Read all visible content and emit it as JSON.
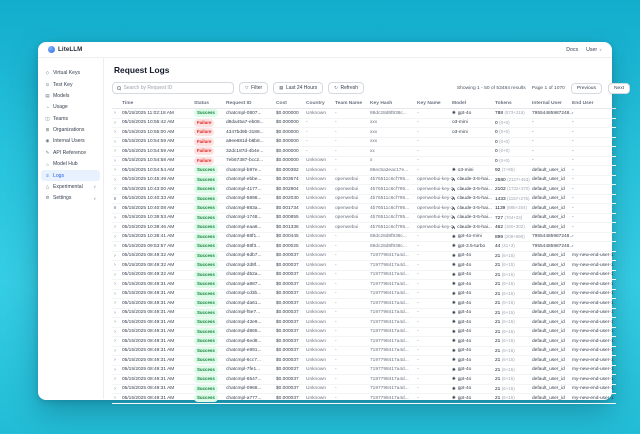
{
  "topbar": {
    "brand": "LiteLLM",
    "links": {
      "docs": "Docs",
      "user": "User"
    }
  },
  "sidebar": {
    "items": [
      {
        "id": "virtual-keys",
        "label": "Virtual Keys",
        "icon": "key-icon",
        "glyph": "◇",
        "active": false,
        "chevron": false
      },
      {
        "id": "test-key",
        "label": "Test Key",
        "icon": "test-key-icon",
        "glyph": "⊙",
        "active": false,
        "chevron": false
      },
      {
        "id": "models",
        "label": "Models",
        "icon": "models-icon",
        "glyph": "▤",
        "active": false,
        "chevron": false
      },
      {
        "id": "usage",
        "label": "Usage",
        "icon": "usage-chart-icon",
        "glyph": "◔",
        "active": false,
        "chevron": false
      },
      {
        "id": "teams",
        "label": "Teams",
        "icon": "teams-icon",
        "glyph": "◫",
        "active": false,
        "chevron": false
      },
      {
        "id": "organizations",
        "label": "Organizations",
        "icon": "organizations-icon",
        "glyph": "⊞",
        "active": false,
        "chevron": false
      },
      {
        "id": "internal-users",
        "label": "Internal Users",
        "icon": "users-icon",
        "glyph": "◉",
        "active": false,
        "chevron": false
      },
      {
        "id": "api-reference",
        "label": "API Reference",
        "icon": "api-reference-icon",
        "glyph": "✎",
        "active": false,
        "chevron": false
      },
      {
        "id": "model-hub",
        "label": "Model Hub",
        "icon": "model-hub-icon",
        "glyph": "⌂",
        "active": false,
        "chevron": false
      },
      {
        "id": "logs",
        "label": "Logs",
        "icon": "logs-icon",
        "glyph": "≡",
        "active": true,
        "chevron": false
      },
      {
        "id": "experimental",
        "label": "Experimental",
        "icon": "experimental-icon",
        "glyph": "△",
        "active": false,
        "chevron": true
      },
      {
        "id": "settings",
        "label": "Settings",
        "icon": "settings-gear-icon",
        "glyph": "⚙",
        "active": false,
        "chevron": true
      }
    ]
  },
  "main": {
    "title": "Request Logs",
    "toolbar": {
      "search_placeholder": "Search by Request ID",
      "filter_label": "Filter",
      "range_label": "Last 24 Hours",
      "refresh_label": "Refresh"
    },
    "pagination": {
      "showing": "Showing 1 - 50 of 53484 results",
      "page": "Page 1 of 1070",
      "previous": "Previous",
      "next": "Next"
    },
    "table": {
      "columns": [
        "Time",
        "Status",
        "Request ID",
        "Cost",
        "Country",
        "Team Name",
        "Key Hash",
        "Key Name",
        "Model",
        "Tokens",
        "Internal User",
        "End User"
      ],
      "rows": [
        {
          "expanded": false,
          "time": "05/15/2025 11:02:18 AM",
          "status": "Success",
          "request_id": "chatcmpl-0807...",
          "cost": "$0.000000",
          "country": "Unknown",
          "team_name": "-",
          "key_hash": "88dc28d8f838c...",
          "key_name": "-",
          "model": "gpt-4o",
          "provider": "openai",
          "tokens": "788",
          "tokens_detail": "(573+215)",
          "internal_user": "79554485987248...",
          "end_user": "-"
        },
        {
          "expanded": false,
          "time": "05/15/2025 10:55:42 AM",
          "status": "Failure",
          "request_id": "d8da45a7-eb08...",
          "cost": "$0.000000",
          "country": "-",
          "team_name": "-",
          "key_hash": "xxx",
          "key_name": "-",
          "model": "o3-mini",
          "provider": "",
          "tokens": "0",
          "tokens_detail": "(0+0)",
          "internal_user": "-",
          "end_user": "-"
        },
        {
          "expanded": false,
          "time": "05/15/2025 10:55:00 AM",
          "status": "Failure",
          "request_id": "4347bd9b-3188...",
          "cost": "$0.000000",
          "country": "-",
          "team_name": "-",
          "key_hash": "xxx",
          "key_name": "-",
          "model": "o3-mini",
          "provider": "",
          "tokens": "0",
          "tokens_detail": "(0+0)",
          "internal_user": "-",
          "end_user": "-"
        },
        {
          "expanded": false,
          "time": "05/15/2025 10:54:59 AM",
          "status": "Failure",
          "request_id": "a9ee681d-b8b8...",
          "cost": "$0.000000",
          "country": "-",
          "team_name": "-",
          "key_hash": "xxx",
          "key_name": "-",
          "model": "",
          "provider": "",
          "tokens": "0",
          "tokens_detail": "(0+0)",
          "internal_user": "-",
          "end_user": "-"
        },
        {
          "expanded": false,
          "time": "05/15/2025 10:54:59 AM",
          "status": "Failure",
          "request_id": "32dc187d-4b4e...",
          "cost": "$0.000000",
          "country": "-",
          "team_name": "-",
          "key_hash": "xx",
          "key_name": "-",
          "model": "",
          "provider": "",
          "tokens": "0",
          "tokens_detail": "(0+0)",
          "internal_user": "-",
          "end_user": "-"
        },
        {
          "expanded": false,
          "time": "05/15/2025 10:54:58 AM",
          "status": "Failure",
          "request_id": "7eb67387-bcc2...",
          "cost": "$0.000000",
          "country": "Unknown",
          "team_name": "-",
          "key_hash": "x",
          "key_name": "-",
          "model": "",
          "provider": "",
          "tokens": "0",
          "tokens_detail": "(0+0)",
          "internal_user": "-",
          "end_user": "-"
        },
        {
          "expanded": false,
          "time": "05/15/2025 10:54:54 AM",
          "status": "Success",
          "request_id": "chatcmpl-b87e...",
          "cost": "$0.000382",
          "country": "Unknown",
          "team_name": "-",
          "key_hash": "86ec5a2eac17e...",
          "key_name": "-",
          "model": "o3-mini",
          "provider": "openai",
          "tokens": "92",
          "tokens_detail": "(7+85)",
          "internal_user": "default_user_id",
          "end_user": "-"
        },
        {
          "expanded": false,
          "time": "05/15/2025 10:45:49 AM",
          "status": "Success",
          "request_id": "chatcmpl-ebbe...",
          "cost": "$0.003674",
          "country": "Unknown",
          "team_name": "openwebui",
          "key_hash": "4b76511c6cf795...",
          "key_name": "openwebui-key-2",
          "model": "claude-3-5-hai...",
          "provider": "anthropic",
          "tokens": "2580",
          "tokens_detail": "(2127+453)",
          "internal_user": "default_user_id",
          "end_user": "-"
        },
        {
          "expanded": false,
          "time": "05/15/2025 10:43:00 AM",
          "status": "Success",
          "request_id": "chatcmpl-4177...",
          "cost": "$0.002904",
          "country": "Unknown",
          "team_name": "openwebui",
          "key_hash": "4b76511c6cf795...",
          "key_name": "openwebui-key-2",
          "model": "claude-3-5-hai...",
          "provider": "anthropic",
          "tokens": "2102",
          "tokens_detail": "(1732+370)",
          "internal_user": "default_user_id",
          "end_user": "-"
        },
        {
          "expanded": true,
          "time": "05/15/2025 10:40:33 AM",
          "status": "Success",
          "request_id": "chatcmpl-5898...",
          "cost": "$0.002030",
          "country": "Unknown",
          "team_name": "openwebui",
          "key_hash": "4b76511c6cf795...",
          "key_name": "openwebui-key-2",
          "model": "claude-3-5-hai...",
          "provider": "anthropic",
          "tokens": "1433",
          "tokens_detail": "(1157+276)",
          "internal_user": "default_user_id",
          "end_user": "-"
        },
        {
          "expanded": true,
          "time": "05/15/2025 10:40:08 AM",
          "status": "Success",
          "request_id": "chatcmpl-883a...",
          "cost": "$0.001734",
          "country": "Unknown",
          "team_name": "openwebui",
          "key_hash": "4b76511c6cf795...",
          "key_name": "openwebui-key-2",
          "model": "claude-3-5-hai...",
          "provider": "anthropic",
          "tokens": "1139",
          "tokens_detail": "(885+254)",
          "internal_user": "default_user_id",
          "end_user": "-"
        },
        {
          "expanded": false,
          "time": "05/15/2025 10:39:53 AM",
          "status": "Success",
          "request_id": "chatcmpl-1748...",
          "cost": "$0.000855",
          "country": "Unknown",
          "team_name": "openwebui",
          "key_hash": "4b76511c6cf795...",
          "key_name": "openwebui-key-2",
          "model": "claude-3-5-hai...",
          "provider": "anthropic",
          "tokens": "727",
          "tokens_detail": "(704+23)",
          "internal_user": "default_user_id",
          "end_user": "-"
        },
        {
          "expanded": false,
          "time": "05/15/2025 10:39:46 AM",
          "status": "Success",
          "request_id": "chatcmpl-eaa6...",
          "cost": "$0.001336",
          "country": "Unknown",
          "team_name": "openwebui",
          "key_hash": "4b76511c6cf795...",
          "key_name": "openwebui-key-2",
          "model": "claude-3-5-hai...",
          "provider": "anthropic",
          "tokens": "462",
          "tokens_detail": "(160+302)",
          "internal_user": "default_user_id",
          "end_user": "-"
        },
        {
          "expanded": false,
          "time": "05/15/2025 10:38:41 AM",
          "status": "Success",
          "request_id": "chatcmpl-88f1...",
          "cost": "$0.000445",
          "country": "Unknown",
          "team_name": "-",
          "key_hash": "88dc28d8f838c...",
          "key_name": "-",
          "model": "gpt-4o-mini",
          "provider": "openai",
          "tokens": "899",
          "tokens_detail": "(209+690)",
          "internal_user": "79554485987248...",
          "end_user": "-"
        },
        {
          "expanded": false,
          "time": "05/15/2025 09:53:57 AM",
          "status": "Success",
          "request_id": "chatcmpl-88f3...",
          "cost": "$0.000025",
          "country": "Unknown",
          "team_name": "-",
          "key_hash": "88dc28d8f838c...",
          "key_name": "-",
          "model": "gpt-3.5-turbo",
          "provider": "openai",
          "tokens": "44",
          "tokens_detail": "(41+3)",
          "internal_user": "79554485987248...",
          "end_user": "-"
        },
        {
          "expanded": false,
          "time": "05/15/2025 08:49:32 AM",
          "status": "Success",
          "request_id": "chatcmpl-6db7...",
          "cost": "$0.000037",
          "country": "Unknown",
          "team_name": "-",
          "key_hash": "7197798417a4d...",
          "key_name": "-",
          "model": "gpt-4o",
          "provider": "openai",
          "tokens": "21",
          "tokens_detail": "(6+15)",
          "internal_user": "default_user_id",
          "end_user": "my-new-end-user-1"
        },
        {
          "expanded": false,
          "time": "05/15/2025 08:49:32 AM",
          "status": "Success",
          "request_id": "chatcmpl-2d8f...",
          "cost": "$0.000037",
          "country": "Unknown",
          "team_name": "-",
          "key_hash": "7197798417a4d...",
          "key_name": "-",
          "model": "gpt-4o",
          "provider": "openai",
          "tokens": "21",
          "tokens_detail": "(6+15)",
          "internal_user": "default_user_id",
          "end_user": "my-new-end-user-1"
        },
        {
          "expanded": false,
          "time": "05/15/2025 08:49:32 AM",
          "status": "Success",
          "request_id": "chatcmpl-d52a...",
          "cost": "$0.000037",
          "country": "Unknown",
          "team_name": "-",
          "key_hash": "7197798417a4d...",
          "key_name": "-",
          "model": "gpt-4o",
          "provider": "openai",
          "tokens": "21",
          "tokens_detail": "(6+15)",
          "internal_user": "default_user_id",
          "end_user": "my-new-end-user-1"
        },
        {
          "expanded": false,
          "time": "05/15/2025 08:49:31 AM",
          "status": "Success",
          "request_id": "chatcmpl-a887...",
          "cost": "$0.000037",
          "country": "Unknown",
          "team_name": "-",
          "key_hash": "7197798417a4d...",
          "key_name": "-",
          "model": "gpt-4o",
          "provider": "openai",
          "tokens": "21",
          "tokens_detail": "(6+15)",
          "internal_user": "default_user_id",
          "end_user": "my-new-end-user-1"
        },
        {
          "expanded": false,
          "time": "05/15/2025 08:49:31 AM",
          "status": "Success",
          "request_id": "chatcmpl-cd3b...",
          "cost": "$0.000037",
          "country": "Unknown",
          "team_name": "-",
          "key_hash": "7197798417a4d...",
          "key_name": "-",
          "model": "gpt-4o",
          "provider": "openai",
          "tokens": "21",
          "tokens_detail": "(6+15)",
          "internal_user": "default_user_id",
          "end_user": "my-new-end-user-1"
        },
        {
          "expanded": false,
          "time": "05/15/2025 08:49:31 AM",
          "status": "Success",
          "request_id": "chatcmpl-da61...",
          "cost": "$0.000037",
          "country": "Unknown",
          "team_name": "-",
          "key_hash": "7197798417a4d...",
          "key_name": "-",
          "model": "gpt-4o",
          "provider": "openai",
          "tokens": "21",
          "tokens_detail": "(6+15)",
          "internal_user": "default_user_id",
          "end_user": "my-new-end-user-1"
        },
        {
          "expanded": false,
          "time": "05/15/2025 08:49:31 AM",
          "status": "Success",
          "request_id": "chatcmpl-f5e7...",
          "cost": "$0.000037",
          "country": "Unknown",
          "team_name": "-",
          "key_hash": "7197798417a4d...",
          "key_name": "-",
          "model": "gpt-4o",
          "provider": "openai",
          "tokens": "21",
          "tokens_detail": "(6+15)",
          "internal_user": "default_user_id",
          "end_user": "my-new-end-user-1"
        },
        {
          "expanded": false,
          "time": "05/15/2025 08:49:31 AM",
          "status": "Success",
          "request_id": "chatcmpl-43e9...",
          "cost": "$0.000037",
          "country": "Unknown",
          "team_name": "-",
          "key_hash": "7197798417a4d...",
          "key_name": "-",
          "model": "gpt-4o",
          "provider": "openai",
          "tokens": "21",
          "tokens_detail": "(6+15)",
          "internal_user": "default_user_id",
          "end_user": "my-new-end-user-1"
        },
        {
          "expanded": false,
          "time": "05/15/2025 08:49:31 AM",
          "status": "Success",
          "request_id": "chatcmpl-d865...",
          "cost": "$0.000037",
          "country": "Unknown",
          "team_name": "-",
          "key_hash": "7197798417a4d...",
          "key_name": "-",
          "model": "gpt-4o",
          "provider": "openai",
          "tokens": "21",
          "tokens_detail": "(6+15)",
          "internal_user": "default_user_id",
          "end_user": "my-new-end-user-1"
        },
        {
          "expanded": false,
          "time": "05/15/2025 08:49:31 AM",
          "status": "Success",
          "request_id": "chatcmpl-6ed8...",
          "cost": "$0.000037",
          "country": "Unknown",
          "team_name": "-",
          "key_hash": "7197798417a4d...",
          "key_name": "-",
          "model": "gpt-4o",
          "provider": "openai",
          "tokens": "21",
          "tokens_detail": "(6+15)",
          "internal_user": "default_user_id",
          "end_user": "my-new-end-user-1"
        },
        {
          "expanded": false,
          "time": "05/15/2025 08:49:31 AM",
          "status": "Success",
          "request_id": "chatcmpl-e891...",
          "cost": "$0.000037",
          "country": "Unknown",
          "team_name": "-",
          "key_hash": "7197798417a4d...",
          "key_name": "-",
          "model": "gpt-4o",
          "provider": "openai",
          "tokens": "21",
          "tokens_detail": "(6+15)",
          "internal_user": "default_user_id",
          "end_user": "my-new-end-user-1"
        },
        {
          "expanded": false,
          "time": "05/15/2025 08:49:31 AM",
          "status": "Success",
          "request_id": "chatcmpl-6cc7...",
          "cost": "$0.000037",
          "country": "Unknown",
          "team_name": "-",
          "key_hash": "7197798417a4d...",
          "key_name": "-",
          "model": "gpt-4o",
          "provider": "openai",
          "tokens": "21",
          "tokens_detail": "(6+15)",
          "internal_user": "default_user_id",
          "end_user": "my-new-end-user-1"
        },
        {
          "expanded": false,
          "time": "05/15/2025 08:49:31 AM",
          "status": "Success",
          "request_id": "chatcmpl-7fe1...",
          "cost": "$0.000037",
          "country": "Unknown",
          "team_name": "-",
          "key_hash": "7197798417a4d...",
          "key_name": "-",
          "model": "gpt-4o",
          "provider": "openai",
          "tokens": "21",
          "tokens_detail": "(6+15)",
          "internal_user": "default_user_id",
          "end_user": "my-new-end-user-1"
        },
        {
          "expanded": false,
          "time": "05/15/2025 08:49:31 AM",
          "status": "Success",
          "request_id": "chatcmpl-6547...",
          "cost": "$0.000037",
          "country": "Unknown",
          "team_name": "-",
          "key_hash": "7197798417a4d...",
          "key_name": "-",
          "model": "gpt-4o",
          "provider": "openai",
          "tokens": "21",
          "tokens_detail": "(6+15)",
          "internal_user": "default_user_id",
          "end_user": "my-new-end-user-1"
        },
        {
          "expanded": false,
          "time": "05/15/2025 08:49:31 AM",
          "status": "Success",
          "request_id": "chatcmpl-0968...",
          "cost": "$0.000037",
          "country": "Unknown",
          "team_name": "-",
          "key_hash": "7197798417a4d...",
          "key_name": "-",
          "model": "gpt-4o",
          "provider": "openai",
          "tokens": "21",
          "tokens_detail": "(6+15)",
          "internal_user": "default_user_id",
          "end_user": "my-new-end-user-1"
        },
        {
          "expanded": false,
          "time": "05/15/2025 08:49:31 AM",
          "status": "Success",
          "request_id": "chatcmpl-a777...",
          "cost": "$0.000037",
          "country": "Unknown",
          "team_name": "-",
          "key_hash": "7197798417a4d...",
          "key_name": "-",
          "model": "gpt-4o",
          "provider": "openai",
          "tokens": "21",
          "tokens_detail": "(6+15)",
          "internal_user": "default_user_id",
          "end_user": "my-new-end-user-1"
        }
      ]
    }
  },
  "colors": {
    "background_top": "#12adcc",
    "background_mid": "#35cde4",
    "accent_blue": "#2563eb",
    "success_bg": "#dcfce7",
    "success_text": "#15803d",
    "failure_bg": "#fee2e2",
    "failure_text": "#dc2626"
  }
}
